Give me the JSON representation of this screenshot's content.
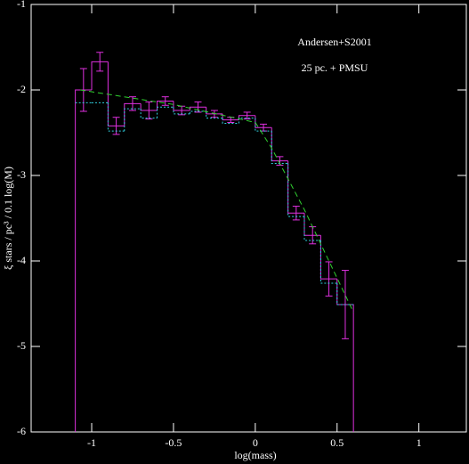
{
  "chart_data": {
    "type": "histogram",
    "xlabel": "log(mass)",
    "ylabel": "ξ stars / pc³ / 0.1 log(M)",
    "annotations": [
      "Andersen+S2001",
      "25 pc. + PMSU"
    ],
    "xlim": [
      -1.37,
      1.29
    ],
    "ylim": [
      -6,
      -1
    ],
    "xticks": [
      -1,
      -0.5,
      0,
      0.5,
      1
    ],
    "yticks": [
      -6,
      -5,
      -4,
      -3,
      -2,
      -1
    ],
    "bins": [
      -1.1,
      -1.0,
      -0.9,
      -0.8,
      -0.7,
      -0.6,
      -0.5,
      -0.4,
      -0.3,
      -0.2,
      -0.1,
      0,
      0.1,
      0.2,
      0.3,
      0.4,
      0.5,
      0.6
    ],
    "series": [
      {
        "color": "#e030e0",
        "dash": "none",
        "closed": true,
        "values": [
          -2.0,
          -1.67,
          -2.42,
          -2.16,
          -2.24,
          -2.13,
          -2.24,
          -2.2,
          -2.28,
          -2.35,
          -2.3,
          -2.44,
          -2.83,
          -3.44,
          -3.7,
          -4.21,
          -4.51
        ],
        "errors": [
          0.25,
          0.11,
          0.1,
          0.08,
          0.1,
          0.05,
          0.05,
          0.06,
          0.04,
          0.03,
          0.04,
          0.04,
          0.05,
          0.08,
          0.1,
          0.2,
          0.4
        ]
      },
      {
        "color": "#30d0e0",
        "dash": "2 2",
        "closed": false,
        "values": [
          -2.15,
          -2.15,
          -2.48,
          -2.22,
          -2.33,
          -2.2,
          -2.28,
          -2.25,
          -2.33,
          -2.39,
          -2.33,
          -2.48,
          -2.86,
          -3.48,
          -3.76,
          -4.26,
          -4.51
        ]
      }
    ],
    "curve": {
      "color": "#30d030",
      "dash": "6 4",
      "x": [
        -1.07,
        -0.5,
        0,
        0.1,
        0.3,
        0.6
      ],
      "values": [
        -2.0,
        -2.17,
        -2.38,
        -2.68,
        -3.4,
        -4.6
      ]
    }
  }
}
